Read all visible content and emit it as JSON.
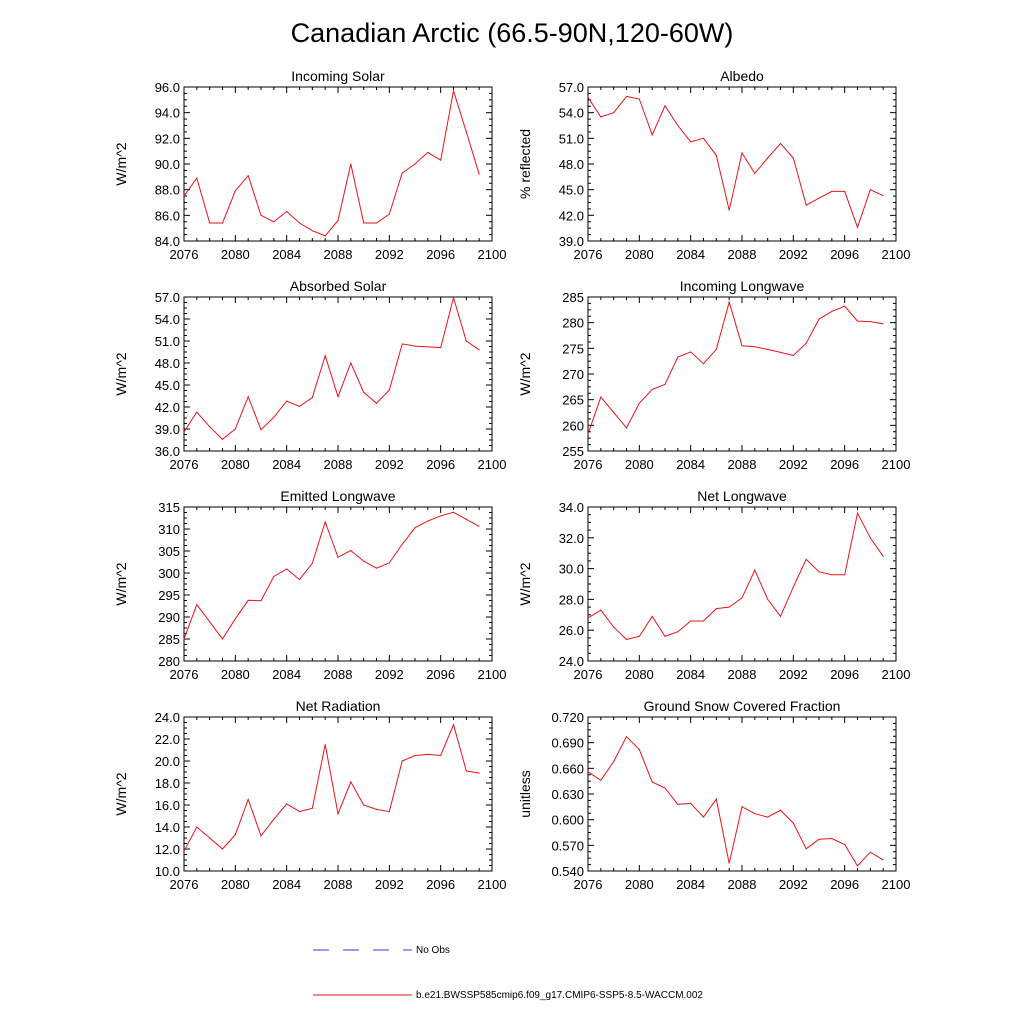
{
  "figure": {
    "title": "Canadian Arctic (66.5-90N,120-60W)"
  },
  "legend": {
    "items": [
      {
        "label": "No Obs",
        "color": "#3a3ad6",
        "dash": true
      },
      {
        "label": "b.e21.BWSSP585cmip6.f09_g17.CMIP6-SSP5-8.5-WACCM.002",
        "color": "#e8141b",
        "dash": false
      }
    ]
  },
  "chart_data": [
    {
      "type": "line",
      "title": "Incoming Solar",
      "xlabel": "",
      "ylabel": "W/m^2",
      "xlim": [
        2076,
        2100
      ],
      "ylim": [
        84,
        96
      ],
      "yticks": [
        84,
        86,
        88,
        90,
        92,
        94,
        96
      ],
      "ytick_labels": [
        "84.0",
        "86.0",
        "88.0",
        "90.0",
        "92.0",
        "94.0",
        "96.0"
      ],
      "xticks": [
        2076,
        2080,
        2084,
        2088,
        2092,
        2096,
        2100
      ],
      "x": [
        2076,
        2077,
        2078,
        2079,
        2080,
        2081,
        2082,
        2083,
        2084,
        2085,
        2086,
        2087,
        2088,
        2089,
        2090,
        2091,
        2092,
        2093,
        2094,
        2095,
        2096,
        2097,
        2098,
        2099
      ],
      "series": [
        {
          "name": "b.e21.BWSSP585cmip6.f09_g17.CMIP6-SSP5-8.5-WACCM.002",
          "color": "#e8141b",
          "values": [
            87.5,
            88.9,
            85.4,
            85.4,
            87.9,
            89.1,
            86.0,
            85.5,
            86.3,
            85.4,
            84.8,
            84.4,
            85.6,
            90.0,
            85.4,
            85.4,
            86.1,
            89.3,
            90.0,
            90.9,
            90.3,
            95.7,
            92.5,
            89.2
          ]
        }
      ]
    },
    {
      "type": "line",
      "title": "Albedo",
      "xlabel": "",
      "ylabel": "% reflected",
      "xlim": [
        2076,
        2100
      ],
      "ylim": [
        39,
        57
      ],
      "yticks": [
        39,
        42,
        45,
        48,
        51,
        54,
        57
      ],
      "ytick_labels": [
        "39.0",
        "42.0",
        "45.0",
        "48.0",
        "51.0",
        "54.0",
        "57.0"
      ],
      "xticks": [
        2076,
        2080,
        2084,
        2088,
        2092,
        2096,
        2100
      ],
      "x": [
        2076,
        2077,
        2078,
        2079,
        2080,
        2081,
        2082,
        2083,
        2084,
        2085,
        2086,
        2087,
        2088,
        2089,
        2090,
        2091,
        2092,
        2093,
        2094,
        2095,
        2096,
        2097,
        2098,
        2099
      ],
      "series": [
        {
          "name": "b.e21.BWSSP585cmip6.f09_g17.CMIP6-SSP5-8.5-WACCM.002",
          "color": "#e8141b",
          "values": [
            55.8,
            53.5,
            54.0,
            55.9,
            55.6,
            51.4,
            54.8,
            52.5,
            50.6,
            51.0,
            49.0,
            42.6,
            49.3,
            46.9,
            48.7,
            50.4,
            48.7,
            43.2,
            44.0,
            44.8,
            44.8,
            40.6,
            45.0,
            44.3
          ]
        }
      ]
    },
    {
      "type": "line",
      "title": "Absorbed Solar",
      "xlabel": "",
      "ylabel": "W/m^2",
      "xlim": [
        2076,
        2100
      ],
      "ylim": [
        36,
        57
      ],
      "yticks": [
        36,
        39,
        42,
        45,
        48,
        51,
        54,
        57
      ],
      "ytick_labels": [
        "36.0",
        "39.0",
        "42.0",
        "45.0",
        "48.0",
        "51.0",
        "54.0",
        "57.0"
      ],
      "xticks": [
        2076,
        2080,
        2084,
        2088,
        2092,
        2096,
        2100
      ],
      "x": [
        2076,
        2077,
        2078,
        2079,
        2080,
        2081,
        2082,
        2083,
        2084,
        2085,
        2086,
        2087,
        2088,
        2089,
        2090,
        2091,
        2092,
        2093,
        2094,
        2095,
        2096,
        2097,
        2098,
        2099
      ],
      "series": [
        {
          "name": "b.e21.BWSSP585cmip6.f09_g17.CMIP6-SSP5-8.5-WACCM.002",
          "color": "#e8141b",
          "values": [
            38.6,
            41.3,
            39.3,
            37.6,
            39.0,
            43.4,
            38.9,
            40.6,
            42.8,
            42.1,
            43.3,
            49.0,
            43.4,
            48.0,
            44.0,
            42.5,
            44.3,
            50.6,
            50.3,
            50.2,
            50.1,
            56.9,
            51.0,
            49.8
          ]
        }
      ]
    },
    {
      "type": "line",
      "title": "Incoming Longwave",
      "xlabel": "",
      "ylabel": "W/m^2",
      "xlim": [
        2076,
        2100
      ],
      "ylim": [
        255,
        285
      ],
      "yticks": [
        255,
        260,
        265,
        270,
        275,
        280,
        285
      ],
      "ytick_labels": [
        "255",
        "260",
        "265",
        "270",
        "275",
        "280",
        "285"
      ],
      "xticks": [
        2076,
        2080,
        2084,
        2088,
        2092,
        2096,
        2100
      ],
      "x": [
        2076,
        2077,
        2078,
        2079,
        2080,
        2081,
        2082,
        2083,
        2084,
        2085,
        2086,
        2087,
        2088,
        2089,
        2090,
        2091,
        2092,
        2093,
        2094,
        2095,
        2096,
        2097,
        2098,
        2099
      ],
      "series": [
        {
          "name": "b.e21.BWSSP585cmip6.f09_g17.CMIP6-SSP5-8.5-WACCM.002",
          "color": "#e8141b",
          "values": [
            258.3,
            265.5,
            262.5,
            259.5,
            264.3,
            267.0,
            268.0,
            273.3,
            274.3,
            272.0,
            274.8,
            284.0,
            275.5,
            275.3,
            274.8,
            274.2,
            273.6,
            276.0,
            280.7,
            282.2,
            283.2,
            280.3,
            280.2,
            279.8
          ]
        }
      ]
    },
    {
      "type": "line",
      "title": "Emitted Longwave",
      "xlabel": "",
      "ylabel": "W/m^2",
      "xlim": [
        2076,
        2100
      ],
      "ylim": [
        280,
        315
      ],
      "yticks": [
        280,
        285,
        290,
        295,
        300,
        305,
        310,
        315
      ],
      "ytick_labels": [
        "280",
        "285",
        "290",
        "295",
        "300",
        "305",
        "310",
        "315"
      ],
      "xticks": [
        2076,
        2080,
        2084,
        2088,
        2092,
        2096,
        2100
      ],
      "x": [
        2076,
        2077,
        2078,
        2079,
        2080,
        2081,
        2082,
        2083,
        2084,
        2085,
        2086,
        2087,
        2088,
        2089,
        2090,
        2091,
        2092,
        2093,
        2094,
        2095,
        2096,
        2097,
        2098,
        2099
      ],
      "series": [
        {
          "name": "b.e21.BWSSP585cmip6.f09_g17.CMIP6-SSP5-8.5-WACCM.002",
          "color": "#e8141b",
          "values": [
            285.0,
            292.8,
            288.9,
            285.0,
            289.6,
            293.8,
            293.7,
            299.2,
            300.9,
            298.5,
            302.2,
            311.6,
            303.6,
            305.1,
            302.7,
            301.1,
            302.3,
            306.5,
            310.3,
            311.8,
            313.0,
            313.8,
            312.2,
            310.6
          ]
        }
      ]
    },
    {
      "type": "line",
      "title": "Net Longwave",
      "xlabel": "",
      "ylabel": "W/m^2",
      "xlim": [
        2076,
        2100
      ],
      "ylim": [
        24,
        34
      ],
      "yticks": [
        24,
        26,
        28,
        30,
        32,
        34
      ],
      "ytick_labels": [
        "24.0",
        "26.0",
        "28.0",
        "30.0",
        "32.0",
        "34.0"
      ],
      "xticks": [
        2076,
        2080,
        2084,
        2088,
        2092,
        2096,
        2100
      ],
      "x": [
        2076,
        2077,
        2078,
        2079,
        2080,
        2081,
        2082,
        2083,
        2084,
        2085,
        2086,
        2087,
        2088,
        2089,
        2090,
        2091,
        2092,
        2093,
        2094,
        2095,
        2096,
        2097,
        2098,
        2099
      ],
      "series": [
        {
          "name": "b.e21.BWSSP585cmip6.f09_g17.CMIP6-SSP5-8.5-WACCM.002",
          "color": "#e8141b",
          "values": [
            26.8,
            27.3,
            26.2,
            25.4,
            25.6,
            26.9,
            25.6,
            25.9,
            26.6,
            26.6,
            27.4,
            27.5,
            28.1,
            29.9,
            28.0,
            26.9,
            28.8,
            30.6,
            29.8,
            29.6,
            29.6,
            33.6,
            32.0,
            30.8
          ]
        }
      ]
    },
    {
      "type": "line",
      "title": "Net Radiation",
      "xlabel": "",
      "ylabel": "W/m^2",
      "xlim": [
        2076,
        2100
      ],
      "ylim": [
        10,
        24
      ],
      "yticks": [
        10,
        12,
        14,
        16,
        18,
        20,
        22,
        24
      ],
      "ytick_labels": [
        "10.0",
        "12.0",
        "14.0",
        "16.0",
        "18.0",
        "20.0",
        "22.0",
        "24.0"
      ],
      "xticks": [
        2076,
        2080,
        2084,
        2088,
        2092,
        2096,
        2100
      ],
      "x": [
        2076,
        2077,
        2078,
        2079,
        2080,
        2081,
        2082,
        2083,
        2084,
        2085,
        2086,
        2087,
        2088,
        2089,
        2090,
        2091,
        2092,
        2093,
        2094,
        2095,
        2096,
        2097,
        2098,
        2099
      ],
      "series": [
        {
          "name": "b.e21.BWSSP585cmip6.f09_g17.CMIP6-SSP5-8.5-WACCM.002",
          "color": "#e8141b",
          "values": [
            11.8,
            14.0,
            13.0,
            12.0,
            13.3,
            16.5,
            13.2,
            14.7,
            16.1,
            15.4,
            15.7,
            21.5,
            15.2,
            18.1,
            16.0,
            15.6,
            15.4,
            20.0,
            20.5,
            20.6,
            20.5,
            23.3,
            19.1,
            18.9
          ]
        }
      ]
    },
    {
      "type": "line",
      "title": "Ground Snow Covered Fraction",
      "xlabel": "",
      "ylabel": "unitless",
      "xlim": [
        2076,
        2100
      ],
      "ylim": [
        0.54,
        0.72
      ],
      "yticks": [
        0.54,
        0.57,
        0.6,
        0.63,
        0.66,
        0.69,
        0.72
      ],
      "ytick_labels": [
        "0.540",
        "0.570",
        "0.600",
        "0.630",
        "0.660",
        "0.690",
        "0.720"
      ],
      "xticks": [
        2076,
        2080,
        2084,
        2088,
        2092,
        2096,
        2100
      ],
      "x": [
        2076,
        2077,
        2078,
        2079,
        2080,
        2081,
        2082,
        2083,
        2084,
        2085,
        2086,
        2087,
        2088,
        2089,
        2090,
        2091,
        2092,
        2093,
        2094,
        2095,
        2096,
        2097,
        2098,
        2099
      ],
      "series": [
        {
          "name": "b.e21.BWSSP585cmip6.f09_g17.CMIP6-SSP5-8.5-WACCM.002",
          "color": "#e8141b",
          "values": [
            0.656,
            0.646,
            0.668,
            0.697,
            0.682,
            0.644,
            0.637,
            0.618,
            0.619,
            0.603,
            0.624,
            0.549,
            0.615,
            0.607,
            0.603,
            0.611,
            0.596,
            0.566,
            0.577,
            0.578,
            0.571,
            0.546,
            0.562,
            0.553
          ]
        }
      ]
    }
  ]
}
